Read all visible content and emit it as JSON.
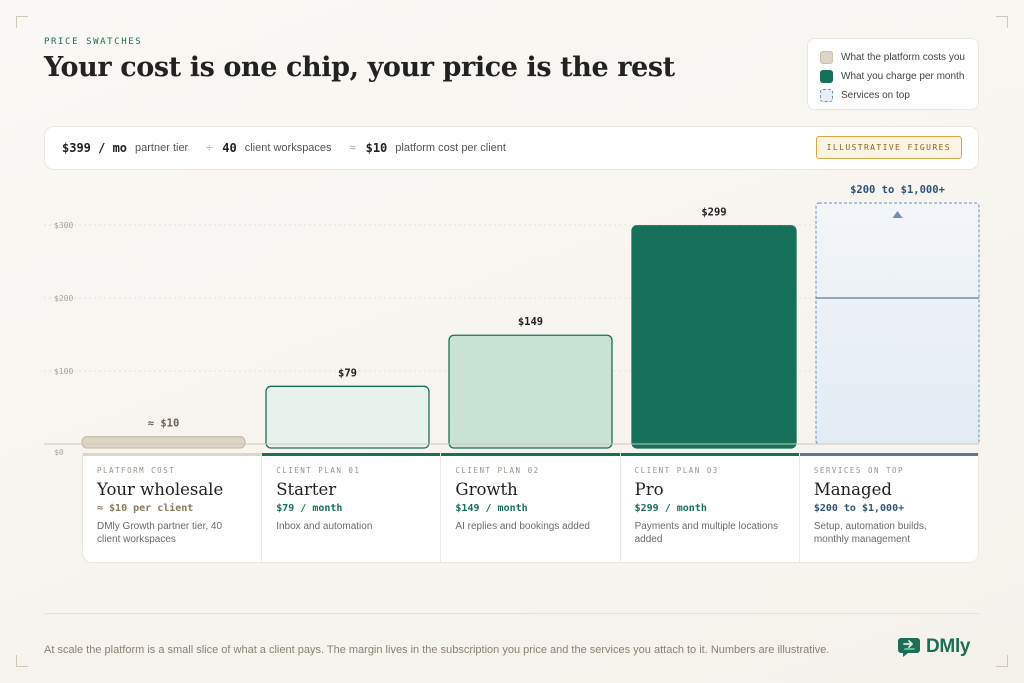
{
  "eyebrow": "PRICE SWATCHES",
  "title": "Your cost is one chip, your price is the rest",
  "legend": {
    "cost": "What the platform costs you",
    "charge": "What you charge per month",
    "services": "Services on top"
  },
  "summary": {
    "tier_value": "$399 / mo",
    "tier_label": "partner tier",
    "op1": "÷",
    "clients_value": "40",
    "clients_label": "client workspaces",
    "op2": "≈",
    "cost_value": "$10",
    "cost_label": "platform cost per client",
    "badge": "ILLUSTRATIVE FIGURES"
  },
  "chart_data": {
    "type": "bar",
    "ylim": [
      0,
      300
    ],
    "yticks": [
      "$0",
      "$100",
      "$200",
      "$300"
    ],
    "ytick_values": [
      0,
      100,
      200,
      300
    ],
    "grid": true,
    "bars": [
      {
        "category": "Your wholesale",
        "value": 10,
        "label": "≈ $10",
        "kind": "cost",
        "color": "#ddd5c5",
        "stroke": "#c9bfac"
      },
      {
        "category": "Starter",
        "value": 79,
        "label": "$79",
        "kind": "charge",
        "color": "#e8f2ec",
        "stroke": "#1d6e58"
      },
      {
        "category": "Growth",
        "value": 149,
        "label": "$149",
        "kind": "charge",
        "color": "#c9e3d5",
        "stroke": "#1d6e58"
      },
      {
        "category": "Pro",
        "value": 299,
        "label": "$299",
        "kind": "charge",
        "color": "#16705a",
        "stroke": "#16705a"
      },
      {
        "category": "Managed",
        "value_low": 200,
        "value_high": 1000,
        "label": "$200 to $1,000+",
        "kind": "services",
        "color": "#e6eef7",
        "stroke": "#6d8fb0"
      }
    ]
  },
  "cards": [
    {
      "kicker": "PLATFORM COST",
      "name": "Your wholesale",
      "price": "≈ $10 per client",
      "desc": "DMly Growth partner tier, 40 client workspaces",
      "bar": "#ddd5c5",
      "price_color": "#8a7a5c"
    },
    {
      "kicker": "CLIENT PLAN 01",
      "name": "Starter",
      "price": "$79 / month",
      "desc": "Inbox and automation",
      "bar": "#16705a",
      "price_color": "#16705a"
    },
    {
      "kicker": "CLIENT PLAN 02",
      "name": "Growth",
      "price": "$149 / month",
      "desc": "AI replies and bookings added",
      "bar": "#16705a",
      "price_color": "#16705a"
    },
    {
      "kicker": "CLIENT PLAN 03",
      "name": "Pro",
      "price": "$299 / month",
      "desc": "Payments and multiple locations added",
      "bar": "#16705a",
      "price_color": "#16705a"
    },
    {
      "kicker": "SERVICES ON TOP",
      "name": "Managed",
      "price": "$200 to $1,000+",
      "desc": "Setup, automation builds, monthly management",
      "bar": "#5c7896",
      "price_color": "#2e5478"
    }
  ],
  "footer": "At scale the platform is a small slice of what a client pays. The margin lives in the subscription you price and the services you attach to it. Numbers are illustrative.",
  "logo": {
    "text": "DMly",
    "icon": "chat-bubble-arrow-icon",
    "color": "#1c6e57"
  }
}
